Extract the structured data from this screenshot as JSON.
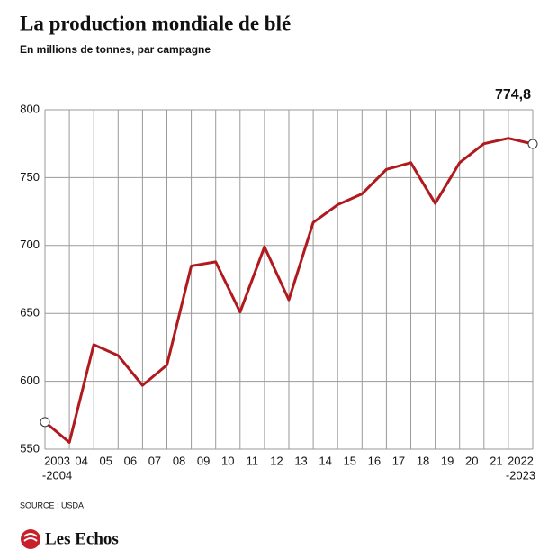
{
  "chart_data": {
    "type": "line",
    "title": "La production mondiale de blé",
    "subtitle": "En millions de tonnes, par campagne",
    "source": "SOURCE : USDA",
    "brand": "Les Echos",
    "categories": [
      null,
      [
        "2003",
        "-2004"
      ],
      "04",
      "05",
      "06",
      "07",
      "08",
      "09",
      "10",
      "11",
      "12",
      "13",
      "14",
      "15",
      "16",
      "17",
      "18",
      "19",
      "20",
      "21",
      [
        "2022",
        "-2023"
      ]
    ],
    "values": [
      570,
      555,
      627,
      619,
      597,
      612,
      685,
      688,
      651,
      699,
      660,
      717,
      730,
      738,
      756,
      761,
      731,
      761,
      775,
      779,
      774.8
    ],
    "value_labels": [
      null,
      null,
      null,
      null,
      null,
      null,
      null,
      null,
      null,
      null,
      null,
      null,
      null,
      null,
      null,
      null,
      null,
      null,
      null,
      null,
      "774,8"
    ],
    "color": "#b0191e",
    "ylim": [
      550,
      800
    ],
    "yticks": [
      550,
      600,
      650,
      700,
      750,
      800
    ],
    "grid": true
  }
}
